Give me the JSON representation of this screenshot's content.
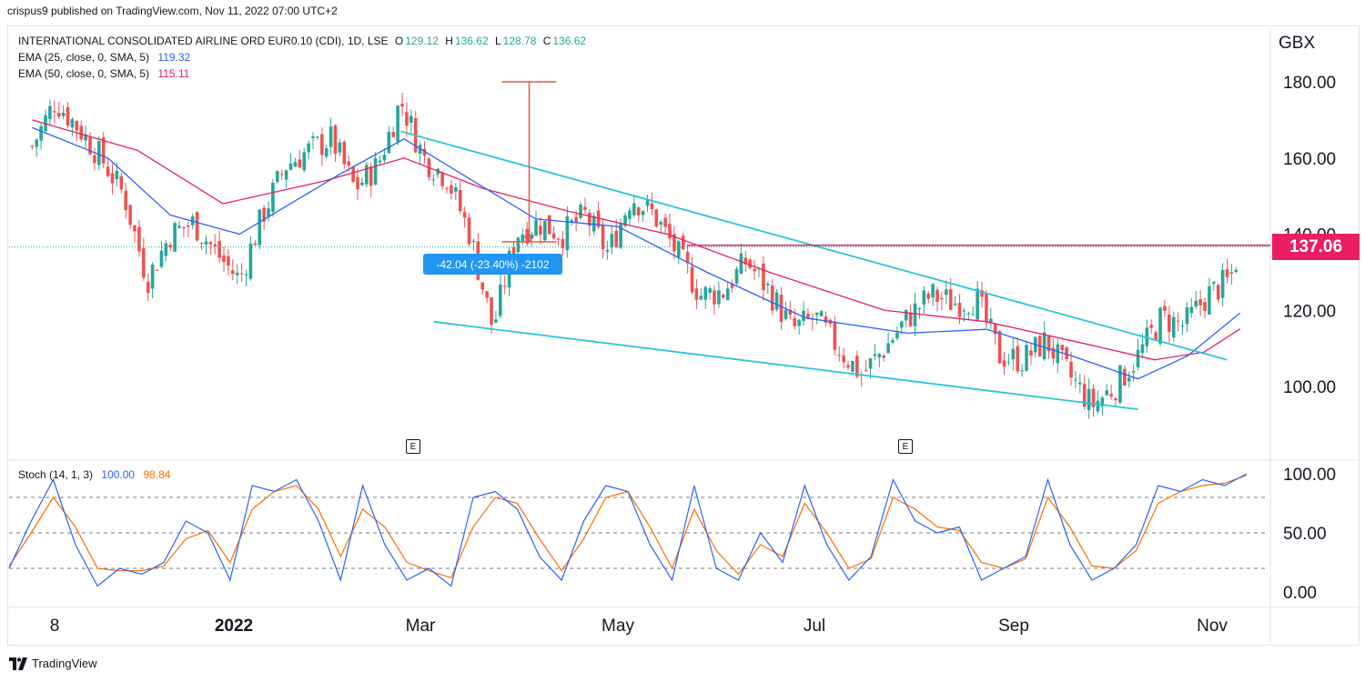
{
  "header": {
    "publish_line": "crispus9 published on TradingView.com, Nov 11, 2022 07:00 UTC+2"
  },
  "legend": {
    "symbol": "INTERNATIONAL CONSOLIDATED AIRLINE ORD EUR0.10 (CDI), 1D, LSE",
    "ohlc": {
      "O": "129.12",
      "H": "136.62",
      "L": "128.78",
      "C": "136.62"
    },
    "ema25_label": "EMA (25, close, 0, SMA, 5)",
    "ema25_value": "119.32",
    "ema50_label": "EMA (50, close, 0, SMA, 5)",
    "ema50_value": "115.11",
    "stoch_label": "Stoch (14, 1, 3)",
    "stoch_k": "100.00",
    "stoch_d": "98.84"
  },
  "price_tag": "137.06",
  "measure_label": "-42.04 (-23.40%) -2102",
  "earnings_marker": "E",
  "footer": {
    "brand": "TradingView"
  },
  "colors": {
    "up": "#26a69a",
    "down": "#ef5350",
    "ema25": "#2962ff",
    "ema50": "#e91e63",
    "trendline": "#26c6da",
    "resistance": "#e91e63",
    "k": "#2962ff",
    "d": "#ff6d00"
  },
  "chart_data": [
    {
      "type": "candlestick",
      "currency": "GBX",
      "yticks": [
        "180.00",
        "160.00",
        "140.00",
        "120.00",
        "100.00"
      ],
      "ylim": [
        82,
        193
      ],
      "xticks": [
        "8",
        "2022",
        "Mar",
        "May",
        "Jul",
        "Sep",
        "Nov"
      ],
      "price_series": [
        {
          "date": "2021-11-08",
          "close": 163
        },
        {
          "date": "2021-11-15",
          "close": 175
        },
        {
          "date": "2021-11-22",
          "close": 168
        },
        {
          "date": "2021-11-29",
          "close": 160
        },
        {
          "date": "2021-12-06",
          "close": 150
        },
        {
          "date": "2021-12-13",
          "close": 128
        },
        {
          "date": "2021-12-20",
          "close": 140
        },
        {
          "date": "2021-12-27",
          "close": 143
        },
        {
          "date": "2022-01-03",
          "close": 135
        },
        {
          "date": "2022-01-10",
          "close": 128
        },
        {
          "date": "2022-01-17",
          "close": 145
        },
        {
          "date": "2022-01-24",
          "close": 158
        },
        {
          "date": "2022-01-31",
          "close": 162
        },
        {
          "date": "2022-02-07",
          "close": 165
        },
        {
          "date": "2022-02-14",
          "close": 152
        },
        {
          "date": "2022-02-21",
          "close": 158
        },
        {
          "date": "2022-02-28",
          "close": 175
        },
        {
          "date": "2022-03-07",
          "close": 160
        },
        {
          "date": "2022-03-14",
          "close": 155
        },
        {
          "date": "2022-03-21",
          "close": 140
        },
        {
          "date": "2022-03-28",
          "close": 115
        },
        {
          "date": "2022-04-04",
          "close": 140
        },
        {
          "date": "2022-04-11",
          "close": 143
        },
        {
          "date": "2022-04-18",
          "close": 140
        },
        {
          "date": "2022-04-25",
          "close": 145
        },
        {
          "date": "2022-05-02",
          "close": 135
        },
        {
          "date": "2022-05-09",
          "close": 150
        },
        {
          "date": "2022-05-16",
          "close": 145
        },
        {
          "date": "2022-05-23",
          "close": 135
        },
        {
          "date": "2022-05-30",
          "close": 124
        },
        {
          "date": "2022-06-06",
          "close": 125
        },
        {
          "date": "2022-06-13",
          "close": 133
        },
        {
          "date": "2022-06-20",
          "close": 125
        },
        {
          "date": "2022-06-27",
          "close": 115
        },
        {
          "date": "2022-07-04",
          "close": 118
        },
        {
          "date": "2022-07-11",
          "close": 110
        },
        {
          "date": "2022-07-18",
          "close": 103
        },
        {
          "date": "2022-07-25",
          "close": 110
        },
        {
          "date": "2022-08-01",
          "close": 118
        },
        {
          "date": "2022-08-08",
          "close": 124
        },
        {
          "date": "2022-08-15",
          "close": 122
        },
        {
          "date": "2022-08-22",
          "close": 123
        },
        {
          "date": "2022-08-29",
          "close": 108
        },
        {
          "date": "2022-09-05",
          "close": 107
        },
        {
          "date": "2022-09-12",
          "close": 112
        },
        {
          "date": "2022-09-19",
          "close": 103
        },
        {
          "date": "2022-09-26",
          "close": 95
        },
        {
          "date": "2022-10-03",
          "close": 100
        },
        {
          "date": "2022-10-10",
          "close": 108
        },
        {
          "date": "2022-10-17",
          "close": 118
        },
        {
          "date": "2022-10-24",
          "close": 116
        },
        {
          "date": "2022-10-31",
          "close": 124
        },
        {
          "date": "2022-11-07",
          "close": 128
        },
        {
          "date": "2022-11-10",
          "close": 136.62
        }
      ],
      "ema25": [
        {
          "date": "2021-11-08",
          "value": 168
        },
        {
          "date": "2021-12-01",
          "value": 160
        },
        {
          "date": "2021-12-20",
          "value": 145
        },
        {
          "date": "2022-01-10",
          "value": 140
        },
        {
          "date": "2022-02-10",
          "value": 156
        },
        {
          "date": "2022-03-01",
          "value": 165
        },
        {
          "date": "2022-03-20",
          "value": 155
        },
        {
          "date": "2022-04-10",
          "value": 144
        },
        {
          "date": "2022-05-05",
          "value": 142
        },
        {
          "date": "2022-06-01",
          "value": 130
        },
        {
          "date": "2022-07-01",
          "value": 118
        },
        {
          "date": "2022-08-01",
          "value": 114
        },
        {
          "date": "2022-08-25",
          "value": 115
        },
        {
          "date": "2022-09-20",
          "value": 108
        },
        {
          "date": "2022-10-10",
          "value": 102
        },
        {
          "date": "2022-10-25",
          "value": 108
        },
        {
          "date": "2022-11-10",
          "value": 119.32
        }
      ],
      "ema50": [
        {
          "date": "2021-11-08",
          "value": 170
        },
        {
          "date": "2021-12-10",
          "value": 162
        },
        {
          "date": "2022-01-05",
          "value": 148
        },
        {
          "date": "2022-02-05",
          "value": 154
        },
        {
          "date": "2022-03-01",
          "value": 160
        },
        {
          "date": "2022-03-25",
          "value": 152
        },
        {
          "date": "2022-04-20",
          "value": 146
        },
        {
          "date": "2022-05-20",
          "value": 140
        },
        {
          "date": "2022-06-20",
          "value": 130
        },
        {
          "date": "2022-07-25",
          "value": 120
        },
        {
          "date": "2022-08-25",
          "value": 117
        },
        {
          "date": "2022-09-25",
          "value": 111
        },
        {
          "date": "2022-10-15",
          "value": 107
        },
        {
          "date": "2022-10-30",
          "value": 109
        },
        {
          "date": "2022-11-10",
          "value": 115.11
        }
      ],
      "trendlines": [
        {
          "start": {
            "date": "2022-02-28",
            "value": 167
          },
          "end": {
            "date": "2022-11-06",
            "value": 107
          }
        },
        {
          "start": {
            "date": "2022-03-10",
            "value": 117
          },
          "end": {
            "date": "2022-10-10",
            "value": 94
          }
        }
      ],
      "resistance": {
        "value": 137.06,
        "from": "2022-05-26"
      },
      "last_price": 137.06,
      "measure": {
        "date": "2022-04-08",
        "top": 180,
        "bottom": 138
      }
    },
    {
      "type": "line",
      "name": "Stoch (14, 1, 3)",
      "yticks": [
        "100.00",
        "50.00",
        "0.00"
      ],
      "ylim": [
        -10,
        110
      ],
      "bands": [
        80,
        50,
        20
      ],
      "k": [
        20,
        60,
        95,
        40,
        5,
        20,
        15,
        25,
        60,
        50,
        10,
        90,
        85,
        95,
        60,
        10,
        90,
        40,
        10,
        20,
        5,
        80,
        85,
        70,
        30,
        10,
        60,
        90,
        85,
        40,
        10,
        90,
        20,
        10,
        50,
        25,
        90,
        40,
        10,
        30,
        95,
        60,
        50,
        55,
        10,
        20,
        30,
        95,
        40,
        10,
        20,
        40,
        90,
        85,
        95,
        90,
        100
      ],
      "d": [
        22,
        50,
        80,
        55,
        20,
        18,
        18,
        22,
        45,
        52,
        25,
        70,
        85,
        90,
        70,
        30,
        70,
        55,
        25,
        18,
        12,
        55,
        80,
        75,
        45,
        18,
        45,
        80,
        85,
        55,
        20,
        70,
        35,
        15,
        40,
        30,
        75,
        50,
        20,
        28,
        80,
        70,
        55,
        52,
        25,
        20,
        28,
        80,
        55,
        22,
        20,
        35,
        75,
        85,
        90,
        92,
        98.84
      ]
    }
  ]
}
